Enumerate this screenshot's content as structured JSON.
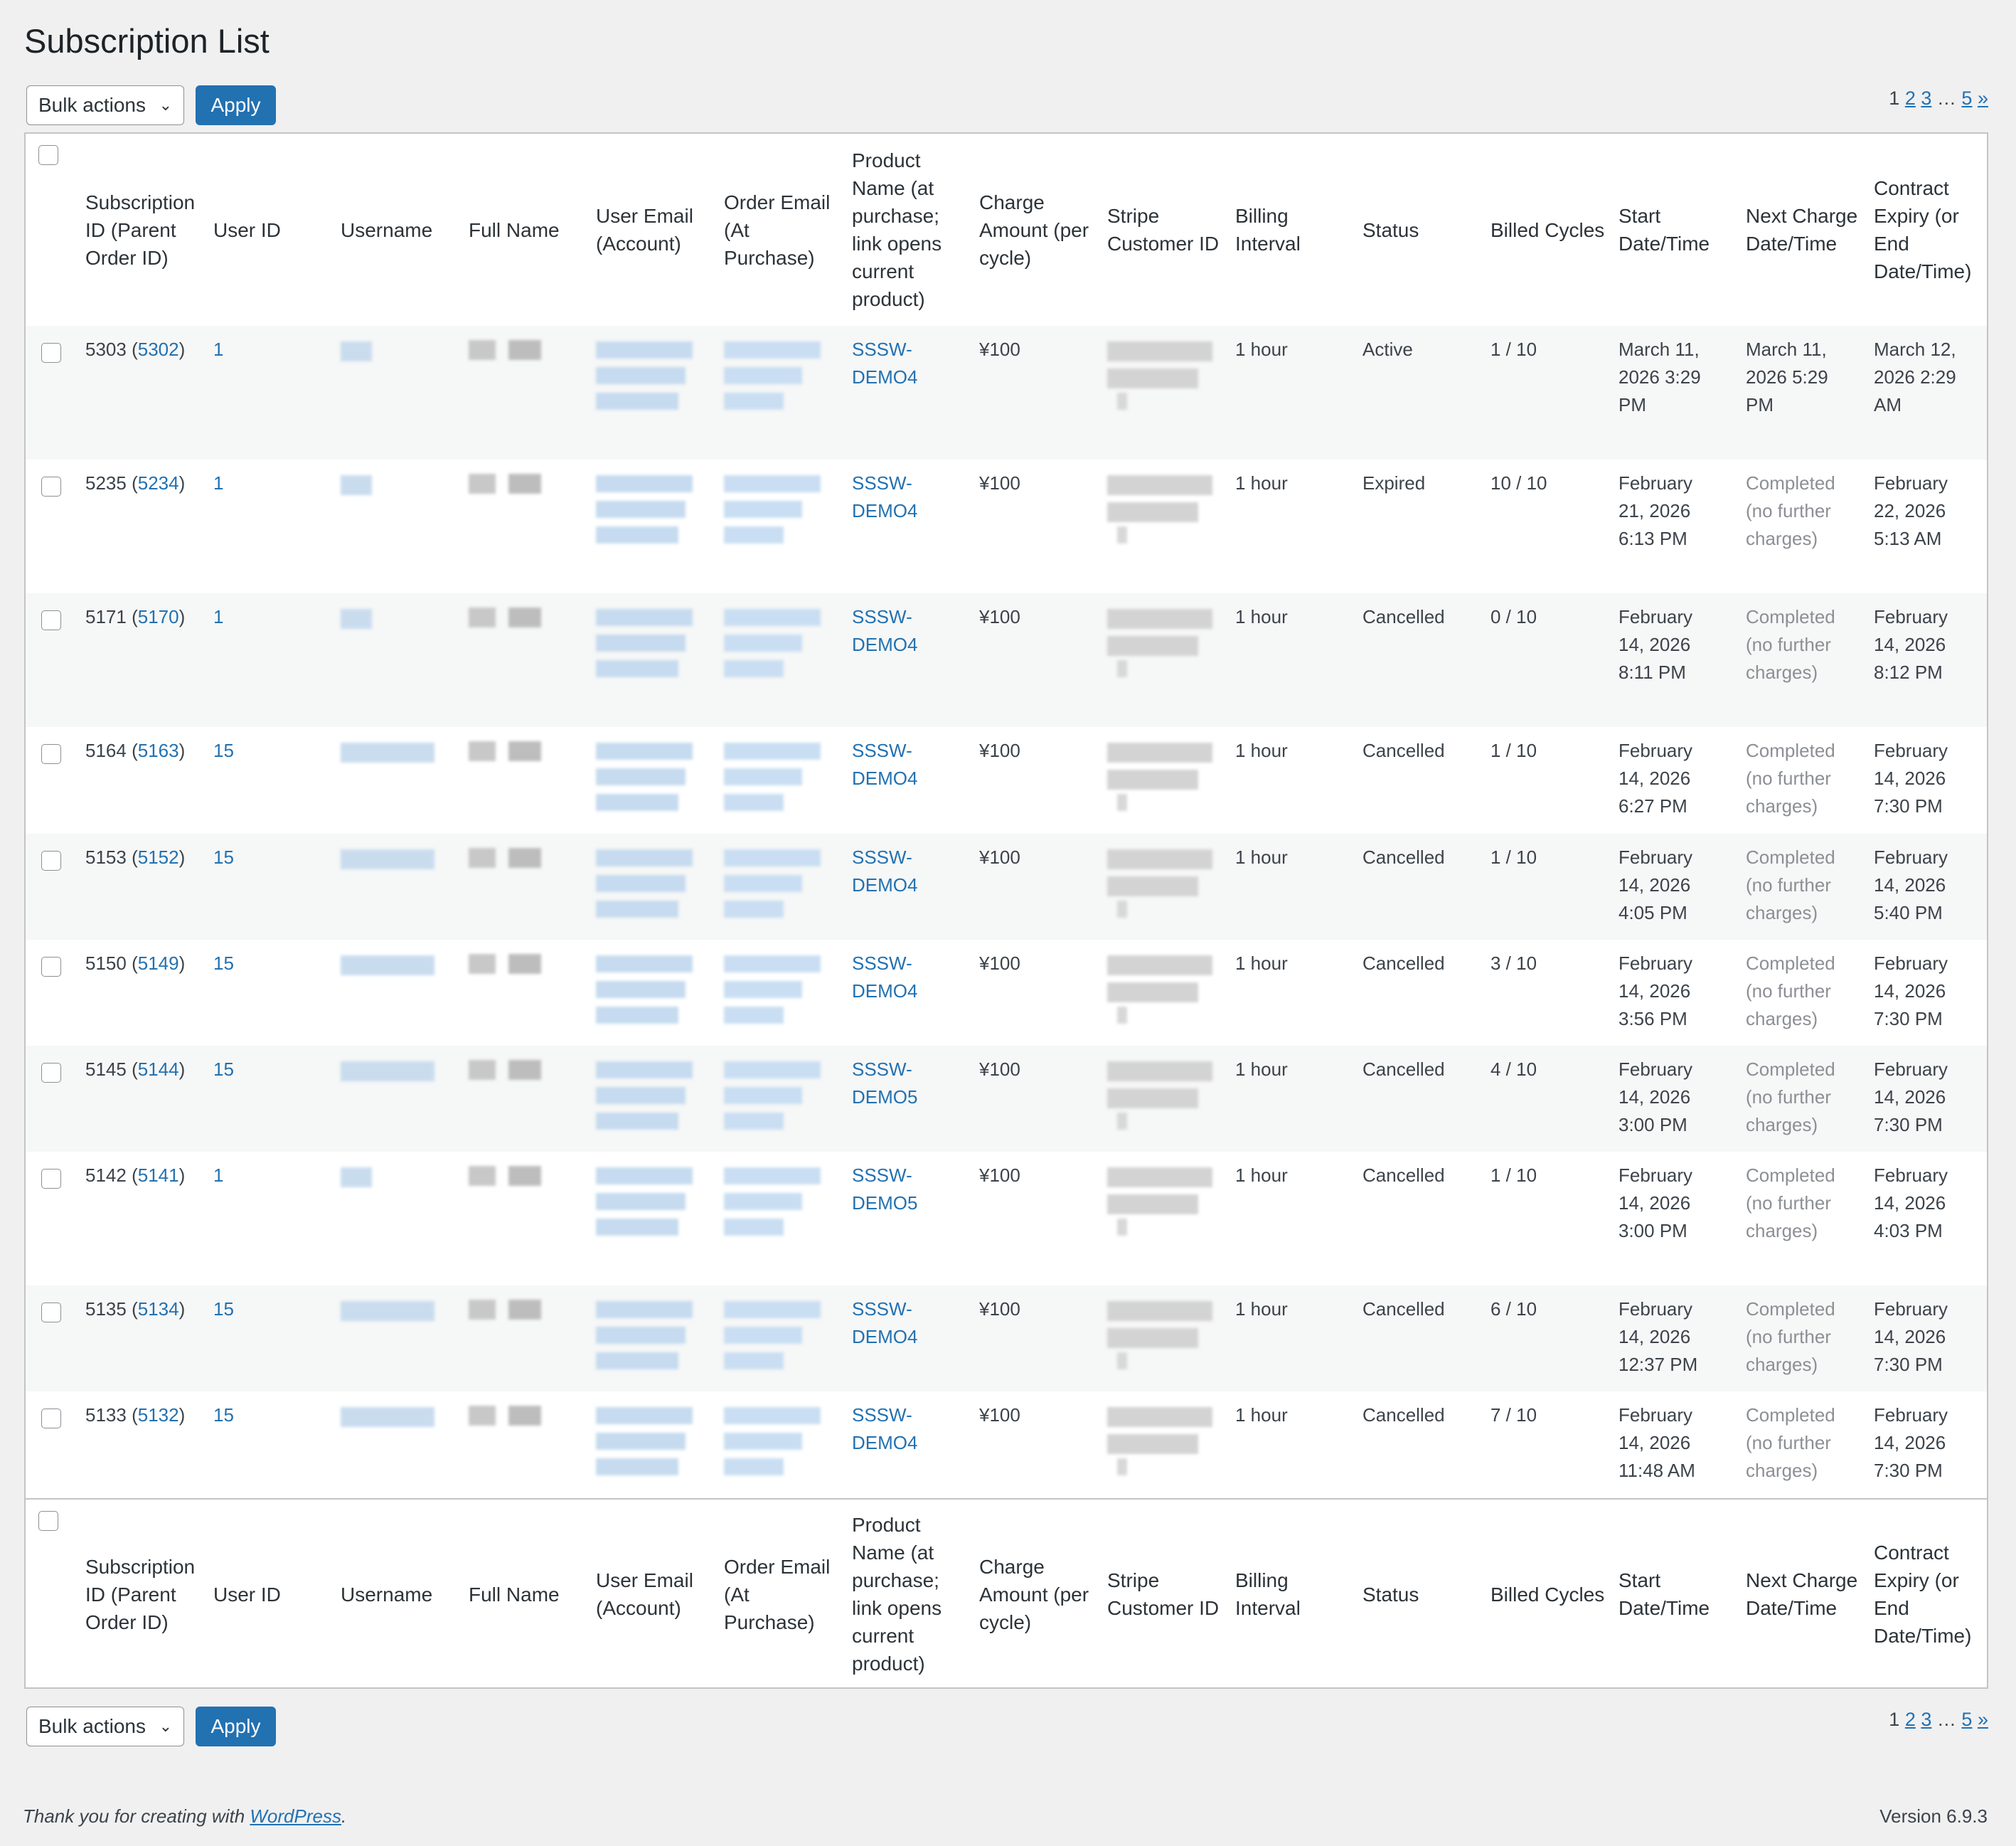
{
  "page": {
    "title": "Subscription List",
    "bulk_actions_label": "Bulk actions",
    "apply_label": "Apply",
    "pagination": {
      "current": "1",
      "pages": [
        "2",
        "3"
      ],
      "ellipsis": "…",
      "last": "5",
      "next": "»"
    }
  },
  "columns": [
    "Subscription ID (Parent Order ID)",
    "User ID",
    "Username",
    "Full Name",
    "User Email (Account)",
    "Order Email (At Purchase)",
    "Product Name (at purchase; link opens current product)",
    "Charge Amount (per cycle)",
    "Stripe Customer ID",
    "Billing Interval",
    "Status",
    "Billed Cycles",
    "Start Date/Time",
    "Next Charge Date/Time",
    "Contract Expiry (or End Date/Time)"
  ],
  "rows": [
    {
      "sub_id": "5303",
      "parent_id": "5302",
      "user_id": "1",
      "product": "SSSW-DEMO4",
      "amount": "¥100",
      "interval": "1 hour",
      "status": "Active",
      "cycles": "1 / 10",
      "start": "March 11, 2026 3:29 PM",
      "next": "March 11, 2026 5:29 PM",
      "expiry": "March 12, 2026 2:29 AM"
    },
    {
      "sub_id": "5235",
      "parent_id": "5234",
      "user_id": "1",
      "product": "SSSW-DEMO4",
      "amount": "¥100",
      "interval": "1 hour",
      "status": "Expired",
      "cycles": "10 / 10",
      "start": "February 21, 2026 6:13 PM",
      "next": "Completed (no further charges)",
      "expiry": "February 22, 2026 5:13 AM"
    },
    {
      "sub_id": "5171",
      "parent_id": "5170",
      "user_id": "1",
      "product": "SSSW-DEMO4",
      "amount": "¥100",
      "interval": "1 hour",
      "status": "Cancelled",
      "cycles": "0 / 10",
      "start": "February 14, 2026 8:11 PM",
      "next": "Completed (no further charges)",
      "expiry": "February 14, 2026 8:12 PM"
    },
    {
      "sub_id": "5164",
      "parent_id": "5163",
      "user_id": "15",
      "product": "SSSW-DEMO4",
      "amount": "¥100",
      "interval": "1 hour",
      "status": "Cancelled",
      "cycles": "1 / 10",
      "start": "February 14, 2026 6:27 PM",
      "next": "Completed (no further charges)",
      "expiry": "February 14, 2026 7:30 PM"
    },
    {
      "sub_id": "5153",
      "parent_id": "5152",
      "user_id": "15",
      "product": "SSSW-DEMO4",
      "amount": "¥100",
      "interval": "1 hour",
      "status": "Cancelled",
      "cycles": "1 / 10",
      "start": "February 14, 2026 4:05 PM",
      "next": "Completed (no further charges)",
      "expiry": "February 14, 2026 5:40 PM"
    },
    {
      "sub_id": "5150",
      "parent_id": "5149",
      "user_id": "15",
      "product": "SSSW-DEMO4",
      "amount": "¥100",
      "interval": "1 hour",
      "status": "Cancelled",
      "cycles": "3 / 10",
      "start": "February 14, 2026 3:56 PM",
      "next": "Completed (no further charges)",
      "expiry": "February 14, 2026 7:30 PM"
    },
    {
      "sub_id": "5145",
      "parent_id": "5144",
      "user_id": "15",
      "product": "SSSW-DEMO5",
      "amount": "¥100",
      "interval": "1 hour",
      "status": "Cancelled",
      "cycles": "4 / 10",
      "start": "February 14, 2026 3:00 PM",
      "next": "Completed (no further charges)",
      "expiry": "February 14, 2026 7:30 PM"
    },
    {
      "sub_id": "5142",
      "parent_id": "5141",
      "user_id": "1",
      "product": "SSSW-DEMO5",
      "amount": "¥100",
      "interval": "1 hour",
      "status": "Cancelled",
      "cycles": "1 / 10",
      "start": "February 14, 2026 3:00 PM",
      "next": "Completed (no further charges)",
      "expiry": "February 14, 2026 4:03 PM"
    },
    {
      "sub_id": "5135",
      "parent_id": "5134",
      "user_id": "15",
      "product": "SSSW-DEMO4",
      "amount": "¥100",
      "interval": "1 hour",
      "status": "Cancelled",
      "cycles": "6 / 10",
      "start": "February 14, 2026 12:37 PM",
      "next": "Completed (no further charges)",
      "expiry": "February 14, 2026 7:30 PM"
    },
    {
      "sub_id": "5133",
      "parent_id": "5132",
      "user_id": "15",
      "product": "SSSW-DEMO4",
      "amount": "¥100",
      "interval": "1 hour",
      "status": "Cancelled",
      "cycles": "7 / 10",
      "start": "February 14, 2026 11:48 AM",
      "next": "Completed (no further charges)",
      "expiry": "February 14, 2026 7:30 PM"
    }
  ],
  "footer": {
    "thanks_prefix": "Thank you for creating with ",
    "wordpress_link": "WordPress",
    "thanks_suffix": ".",
    "version": "Version 6.9.3"
  },
  "colors": {
    "link": "#2271b1",
    "button": "#2271b1",
    "background": "#f0f0f1",
    "row_alt": "#f6f7f7"
  }
}
